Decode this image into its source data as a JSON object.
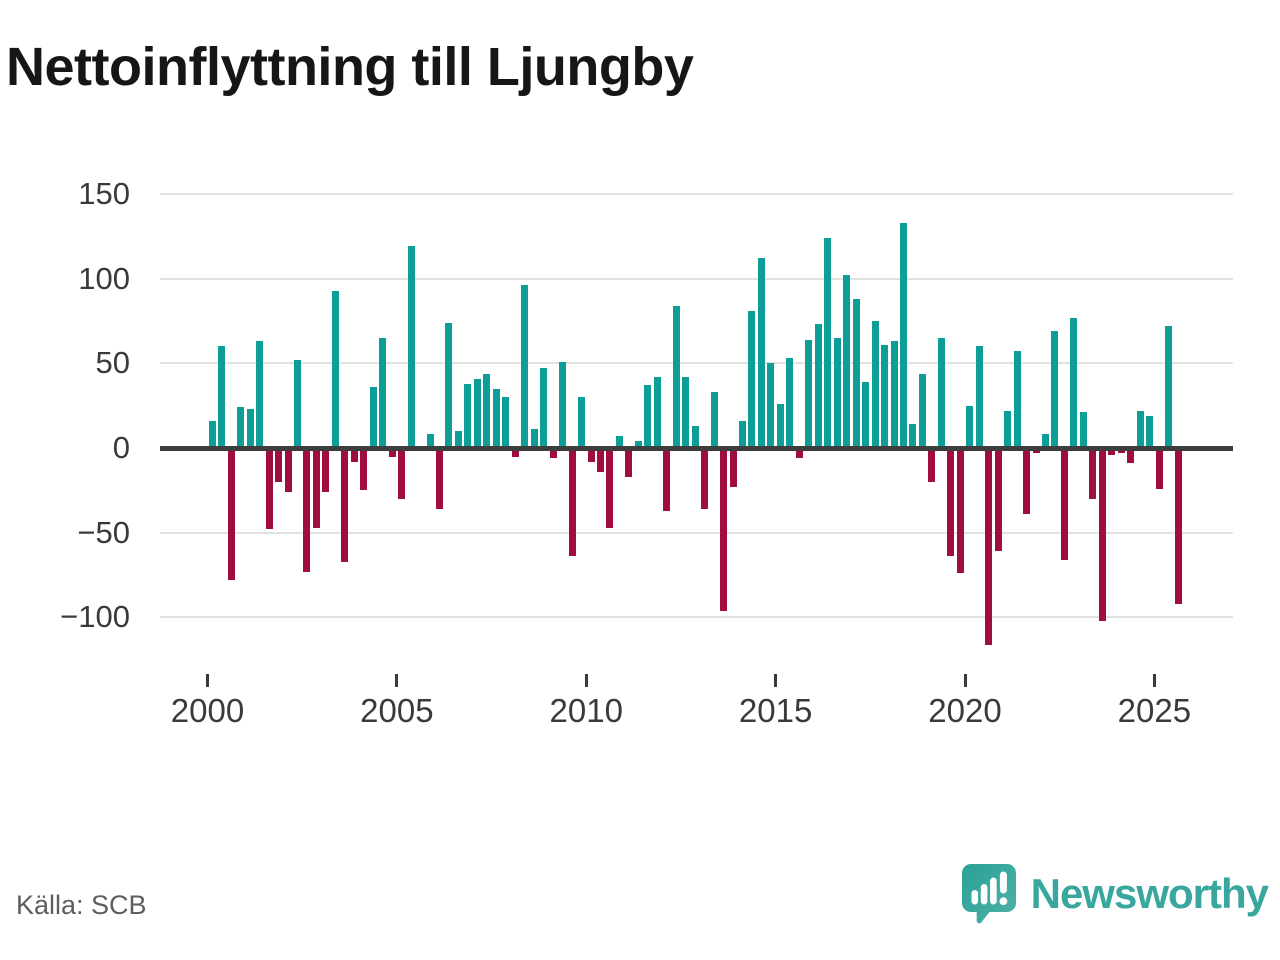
{
  "header": {
    "title": "Nettoinflyttning till Ljungby"
  },
  "footer": {
    "source": "Källa: SCB",
    "brand": "Newsworthy",
    "logo_icon": "newsworthy-speech-bubble-chart-icon"
  },
  "colors": {
    "positive_bar": "#0d9f97",
    "negative_bar": "#a00d3f",
    "brand_teal": "#3aa79e",
    "grid": "#e2e2e2",
    "zero_line": "#3d3d3d",
    "axis_text": "#3a3a3a",
    "title_text": "#161616",
    "source_text": "#5e5e5e"
  },
  "chart_data": {
    "type": "bar",
    "title": "Nettoinflyttning till Ljungby",
    "frequency": "quarterly",
    "x_start": {
      "year": 2000,
      "quarter": 1
    },
    "x_end": {
      "year": 2025,
      "quarter": 3
    },
    "values": [
      16,
      60,
      -78,
      24,
      23,
      63,
      -48,
      -20,
      -26,
      52,
      -73,
      -47,
      -26,
      93,
      -67,
      -8,
      -25,
      36,
      65,
      -5,
      -30,
      119,
      0,
      8,
      -36,
      74,
      10,
      38,
      41,
      44,
      35,
      30,
      -5,
      96,
      11,
      47,
      -6,
      51,
      -64,
      30,
      -8,
      -14,
      -47,
      7,
      -17,
      4,
      37,
      42,
      -37,
      84,
      42,
      13,
      -36,
      33,
      -96,
      -23,
      16,
      81,
      112,
      50,
      26,
      53,
      -6,
      64,
      73,
      124,
      65,
      102,
      88,
      39,
      75,
      61,
      63,
      133,
      14,
      44,
      -20,
      65,
      -64,
      -74,
      25,
      60,
      -116,
      -61,
      22,
      57,
      -39,
      -3,
      8,
      69,
      -66,
      77,
      21,
      -30,
      -102,
      -4,
      -3,
      -9,
      22,
      19,
      -24,
      72,
      -92
    ],
    "x_tick_labels": [
      "2000",
      "2005",
      "2010",
      "2015",
      "2020",
      "2025"
    ],
    "y_ticks": [
      150,
      100,
      50,
      0,
      -50,
      -100
    ],
    "y_tick_labels": [
      "150",
      "100",
      "50",
      "0",
      "−50",
      "−100"
    ],
    "ylim": [
      -125,
      158
    ],
    "xlabel": "",
    "ylabel": "",
    "grid": "horizontal-only",
    "legend": "none"
  }
}
